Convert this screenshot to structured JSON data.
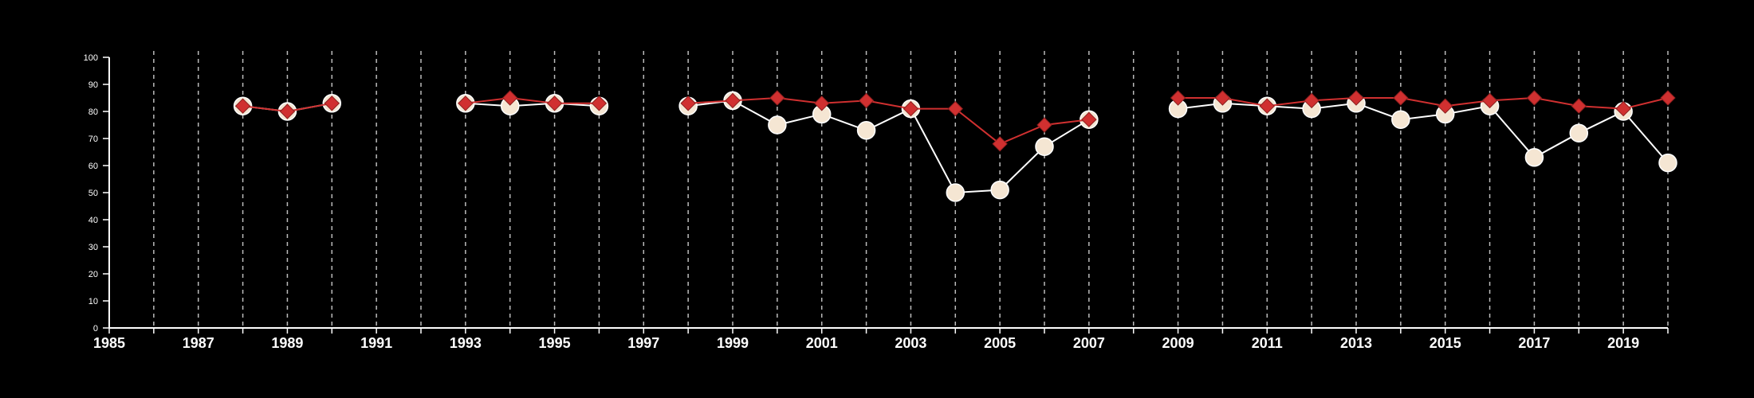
{
  "chart_data": {
    "type": "line",
    "title": "",
    "xlabel": "",
    "ylabel": "",
    "xlim": [
      1985,
      2020
    ],
    "ylim": [
      0,
      100
    ],
    "y_ticks": [
      0,
      10,
      20,
      30,
      40,
      50,
      60,
      70,
      80,
      90,
      100
    ],
    "x_tick_labels": [
      "1985",
      "1987",
      "1989",
      "1991",
      "1993",
      "1995",
      "1997",
      "1999",
      "2001",
      "2003",
      "2005",
      "2007",
      "2009",
      "2011",
      "2013",
      "2015",
      "2017",
      "2019"
    ],
    "grid": "vertical dashed lines at each year",
    "legend": "none",
    "series": [
      {
        "marker": "circle",
        "color": "#f5e6d3",
        "points": [
          [
            [
              1988,
              82
            ],
            [
              1989,
              80
            ],
            [
              1990,
              83
            ]
          ],
          [
            [
              1993,
              83
            ],
            [
              1994,
              82
            ],
            [
              1995,
              83
            ],
            [
              1996,
              82
            ]
          ],
          [
            [
              1998,
              82
            ],
            [
              1999,
              84
            ],
            [
              2000,
              75
            ],
            [
              2001,
              79
            ],
            [
              2002,
              73
            ],
            [
              2003,
              81
            ],
            [
              2004,
              50
            ],
            [
              2005,
              51
            ],
            [
              2006,
              67
            ],
            [
              2007,
              77
            ]
          ],
          [
            [
              2009,
              81
            ],
            [
              2010,
              83
            ],
            [
              2011,
              82
            ],
            [
              2012,
              81
            ],
            [
              2013,
              83
            ],
            [
              2014,
              77
            ],
            [
              2015,
              79
            ],
            [
              2016,
              82
            ],
            [
              2017,
              63
            ],
            [
              2018,
              72
            ],
            [
              2019,
              80
            ],
            [
              2020,
              61
            ]
          ]
        ]
      },
      {
        "marker": "diamond",
        "color": "#d03030",
        "points": [
          [
            [
              1988,
              82
            ],
            [
              1989,
              80
            ],
            [
              1990,
              83
            ]
          ],
          [
            [
              1993,
              83
            ],
            [
              1994,
              85
            ],
            [
              1995,
              83
            ],
            [
              1996,
              83
            ]
          ],
          [
            [
              1998,
              83
            ],
            [
              1999,
              84
            ],
            [
              2000,
              85
            ],
            [
              2001,
              83
            ],
            [
              2002,
              84
            ],
            [
              2003,
              81
            ],
            [
              2004,
              81
            ],
            [
              2005,
              68
            ],
            [
              2006,
              75
            ],
            [
              2007,
              77
            ]
          ],
          [
            [
              2009,
              85
            ],
            [
              2010,
              85
            ],
            [
              2011,
              82
            ],
            [
              2012,
              84
            ],
            [
              2013,
              85
            ],
            [
              2014,
              85
            ],
            [
              2015,
              82
            ],
            [
              2016,
              84
            ],
            [
              2017,
              85
            ],
            [
              2018,
              82
            ],
            [
              2019,
              81
            ],
            [
              2020,
              85
            ]
          ]
        ]
      }
    ]
  }
}
